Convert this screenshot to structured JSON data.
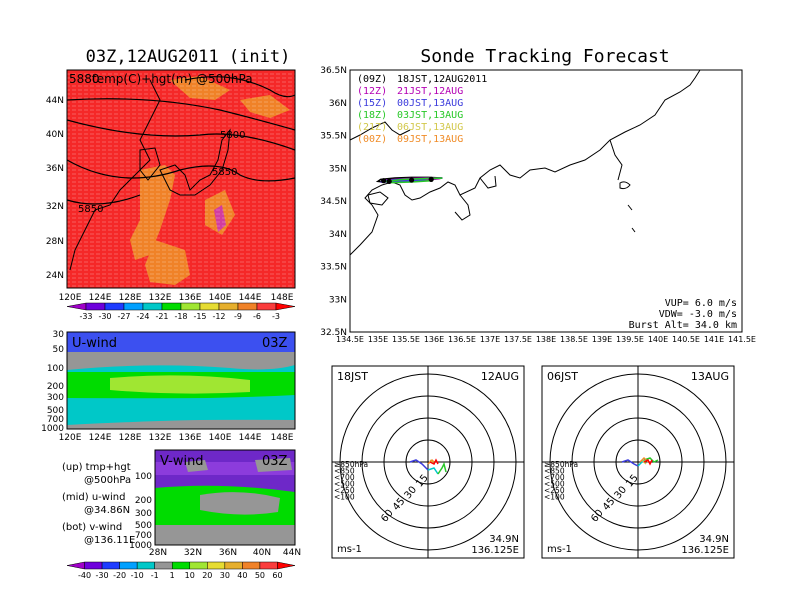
{
  "left_title": "03Z,12AUG2011 (init)",
  "right_title": "Sonde Tracking Forecast",
  "map_overlay_label": "temp(C)+hgt(m) @500hPa",
  "map_corner_label": "5880",
  "lat_ticks": [
    "44N",
    "40N",
    "36N",
    "32N",
    "28N",
    "24N"
  ],
  "lon_ticks": [
    "120E",
    "124E",
    "128E",
    "132E",
    "136E",
    "140E",
    "144E",
    "148E"
  ],
  "contour_labels": [
    "5800",
    "5850",
    "5850"
  ],
  "temp_colorbar": {
    "labels": [
      "-33",
      "-30",
      "-27",
      "-24",
      "-21",
      "-18",
      "-15",
      "-12",
      "-9",
      "-6",
      "-3"
    ],
    "colors": [
      "#a000c8",
      "#6e00dc",
      "#1e3cff",
      "#00a0ff",
      "#00c8c8",
      "#00dc00",
      "#a0e632",
      "#e6dc32",
      "#e6af2d",
      "#f08228",
      "#fa3c3c",
      "#ff0000"
    ]
  },
  "uwind": {
    "label": "U-wind",
    "time": "03Z",
    "y_ticks": [
      "30",
      "50",
      "100",
      "200",
      "300",
      "500",
      "700",
      "1000"
    ],
    "x_ticks": [
      "120E",
      "124E",
      "128E",
      "132E",
      "136E",
      "140E",
      "144E",
      "148E"
    ]
  },
  "vwind": {
    "label": "V-wind",
    "time": "03Z",
    "y_ticks": [
      "100",
      "200",
      "300",
      "500",
      "700",
      "1000"
    ],
    "x_ticks": [
      "28N",
      "32N",
      "36N",
      "40N",
      "44N"
    ]
  },
  "legend_notes": [
    [
      "(up) tmp+hgt",
      "@500hPa"
    ],
    [
      "(mid) u-wind",
      "@34.86N"
    ],
    [
      "(bot) v-wind",
      "@136.11E"
    ]
  ],
  "wind_colorbar": {
    "labels": [
      "-40",
      "-30",
      "-20",
      "-10",
      "-1",
      "1",
      "10",
      "20",
      "30",
      "40",
      "50",
      "60"
    ],
    "colors": [
      "#a000c8",
      "#6e00dc",
      "#1e3cff",
      "#00a0ff",
      "#00c8c8",
      "#969696",
      "#00dc00",
      "#a0e632",
      "#e6dc32",
      "#e6af2d",
      "#f08228",
      "#fa3c3c",
      "#ff0000"
    ]
  },
  "track_map": {
    "x_ticks": [
      "134.5E",
      "135E",
      "135.5E",
      "136E",
      "136.5E",
      "137E",
      "137.5E",
      "138E",
      "138.5E",
      "139E",
      "139.5E",
      "140E",
      "140.5E",
      "141E",
      "141.5E"
    ],
    "y_ticks": [
      "36.5N",
      "36N",
      "35.5N",
      "35N",
      "34.5N",
      "34N",
      "33.5N",
      "33N",
      "32.5N"
    ],
    "launches": [
      {
        "code": "(09Z)",
        "time": "18JST,12AUG2011",
        "color": "#000000"
      },
      {
        "code": "(12Z)",
        "time": "21JST,12AUG",
        "color": "#b400b4"
      },
      {
        "code": "(15Z)",
        "time": "00JST,13AUG",
        "color": "#3c3cdc"
      },
      {
        "code": "(18Z)",
        "time": "03JST,13AUG",
        "color": "#28c828"
      },
      {
        "code": "(21Z)",
        "time": "06JST,13AUG",
        "color": "#d2c84b"
      },
      {
        "code": "(00Z)",
        "time": "09JST,13AUG",
        "color": "#f08c28"
      }
    ],
    "params": [
      "VUP=  6.0 m/s",
      "VDW= -3.0 m/s",
      "Burst Alt= 34.0 km"
    ]
  },
  "hodo_left": {
    "time": "18JST",
    "date": "12AUG",
    "lat": "34.9N",
    "lon": "136.125E",
    "unit": "ms-1",
    "rings": [
      "15",
      "30",
      "45",
      "60"
    ]
  },
  "hodo_right": {
    "time": "06JST",
    "date": "13AUG",
    "lat": "34.9N",
    "lon": "136.125E",
    "unit": "ms-1",
    "rings": [
      "15",
      "30",
      "45",
      "60"
    ]
  },
  "hodo_levels": [
    {
      "label": "≥850hPa",
      "color": "#ff0000"
    },
    {
      "label": "<850",
      "color": "#f08c28"
    },
    {
      "label": "<700",
      "color": "#d2c84b"
    },
    {
      "label": "<500",
      "color": "#28c828"
    },
    {
      "label": "<250",
      "color": "#00c8c8"
    },
    {
      "label": "<100",
      "color": "#3c3cdc"
    }
  ],
  "chart_data": {
    "type": "line",
    "title": "Sonde Tracking Forecast",
    "series": [
      {
        "name": "(09Z) 18JST,12AUG2011",
        "lon": [
          136.15,
          135.9,
          135.6,
          135.3,
          135.05,
          135.0,
          135.1,
          135.5,
          135.95,
          136.15
        ],
        "lat": [
          34.85,
          34.86,
          34.86,
          34.85,
          34.83,
          34.8,
          34.79,
          34.8,
          34.83,
          34.85
        ]
      },
      {
        "name": "(12Z) 21JST,12AUG",
        "lon": [
          136.15,
          135.85,
          135.5,
          135.15,
          135.05,
          135.3,
          135.8,
          136.1
        ],
        "lat": [
          34.85,
          34.85,
          34.84,
          34.82,
          34.79,
          34.8,
          34.82,
          34.84
        ]
      },
      {
        "name": "(15Z) 00JST,13AUG",
        "lon": [
          136.15,
          135.8,
          135.4,
          135.1,
          135.05,
          135.35,
          135.85
        ],
        "lat": [
          34.85,
          34.84,
          34.83,
          34.81,
          34.79,
          34.8,
          34.82
        ]
      },
      {
        "name": "(18Z) 03JST,13AUG",
        "lon": [
          136.15,
          135.8,
          135.45,
          135.15,
          135.2,
          135.6,
          135.95
        ],
        "lat": [
          34.85,
          34.84,
          34.83,
          34.8,
          34.78,
          34.79,
          34.81
        ]
      }
    ],
    "landing_points": [
      {
        "lon": 135.1,
        "lat": 34.81
      },
      {
        "lon": 135.2,
        "lat": 34.8
      },
      {
        "lon": 135.6,
        "lat": 34.82
      },
      {
        "lon": 135.95,
        "lat": 34.83
      }
    ],
    "xlim": [
      134.5,
      141.5
    ],
    "ylim": [
      32.5,
      36.5
    ],
    "xlabel": "",
    "ylabel": ""
  }
}
